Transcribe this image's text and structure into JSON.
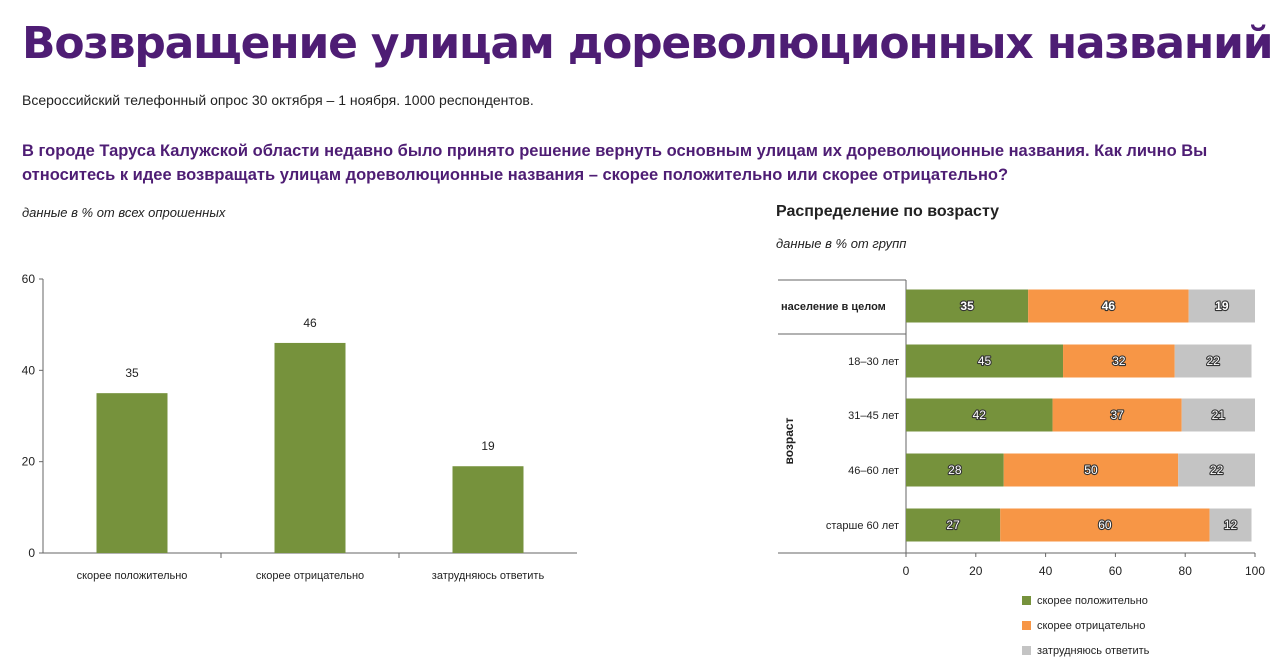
{
  "header": {
    "title": "Возвращение улицам дореволюционных названий",
    "subtitle": "Всероссийский телефонный опрос 30 октября – 1 ноября. 1000 респондентов.",
    "question": "В городе Таруса Калужской области недавно было принято решение вернуть основным улицам их дореволюционные названия. Как лично Вы относитесь к идее возвращать улицам дореволюционные названия – скорее положительно или скорее отрицательно?"
  },
  "left_note": "данные в % от всех опрошенных",
  "right_title": "Распределение по возрасту",
  "right_note": "данные в % от групп",
  "colors": {
    "positive": "#76923c",
    "negative": "#f79646",
    "unsure": "#c4c4c4",
    "title": "#4e1d74"
  },
  "legend": [
    "скорее положительно",
    "скорее отрицательно",
    "затрудняюсь ответить"
  ],
  "chart_data": [
    {
      "type": "bar",
      "categories": [
        "скорее положительно",
        "скорее отрицательно",
        "затрудняюсь ответить"
      ],
      "values": [
        35,
        46,
        19
      ],
      "ylim": [
        0,
        60
      ],
      "yticks": [
        0,
        20,
        40,
        60
      ],
      "grid": false
    },
    {
      "type": "bar",
      "orientation": "horizontal",
      "stacked": true,
      "categories": [
        "население в целом",
        "18–30 лет",
        "31–45 лет",
        "46–60 лет",
        "старше 60 лет"
      ],
      "group_label": "возраст",
      "series": [
        {
          "name": "скорее положительно",
          "values": [
            35,
            45,
            42,
            28,
            27
          ]
        },
        {
          "name": "скорее отрицательно",
          "values": [
            46,
            32,
            37,
            50,
            60
          ]
        },
        {
          "name": "затрудняюсь ответить",
          "values": [
            19,
            22,
            21,
            22,
            12
          ]
        }
      ],
      "xlim": [
        0,
        100
      ],
      "xticks": [
        0,
        20,
        40,
        60,
        80,
        100
      ],
      "legend_position": "bottom-right",
      "grid": false
    }
  ]
}
